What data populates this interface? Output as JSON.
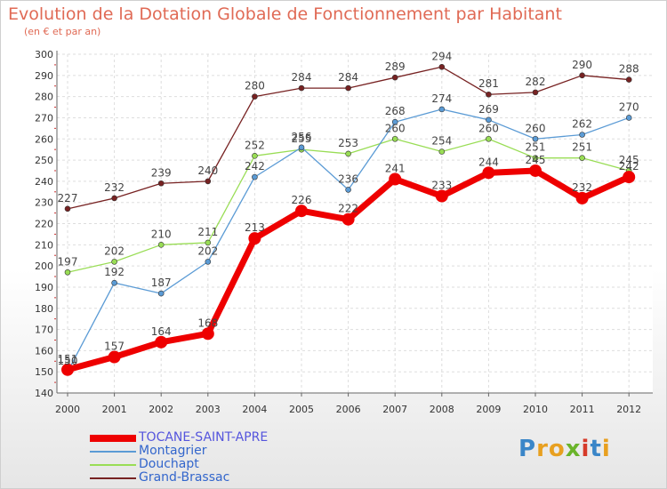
{
  "chart_data": {
    "type": "line",
    "title": "Evolution de la Dotation Globale de Fonctionnement par Habitant",
    "subtitle": "(en € et par an)",
    "xlabel": "",
    "ylabel": "",
    "x": [
      "2000",
      "2001",
      "2002",
      "2003",
      "2004",
      "2005",
      "2006",
      "2007",
      "2008",
      "2009",
      "2010",
      "2011",
      "2012"
    ],
    "ylim": [
      140,
      300
    ],
    "yticks": [
      140,
      150,
      160,
      170,
      180,
      190,
      200,
      210,
      220,
      230,
      240,
      250,
      260,
      270,
      280,
      290,
      300
    ],
    "grid": true,
    "legend_position": "bottom-left",
    "series": [
      {
        "name": "TOCANE-SAINT-APRE",
        "color": "#ee0000",
        "values": [
          151,
          157,
          164,
          168,
          213,
          226,
          222,
          241,
          233,
          244,
          245,
          232,
          242
        ]
      },
      {
        "name": "Montagrier",
        "color": "#5b9bd5",
        "values": [
          150,
          192,
          187,
          202,
          242,
          256,
          236,
          268,
          274,
          269,
          260,
          262,
          270
        ]
      },
      {
        "name": "Douchapt",
        "color": "#99dd55",
        "values": [
          197,
          202,
          210,
          211,
          252,
          255,
          253,
          260,
          254,
          260,
          251,
          251,
          245
        ]
      },
      {
        "name": "Grand-Brassac",
        "color": "#772222",
        "values": [
          227,
          232,
          239,
          240,
          280,
          284,
          284,
          289,
          294,
          281,
          282,
          290,
          288
        ]
      }
    ]
  },
  "brand": [
    "P",
    "r",
    "o",
    "x",
    "i",
    "t",
    "i"
  ]
}
